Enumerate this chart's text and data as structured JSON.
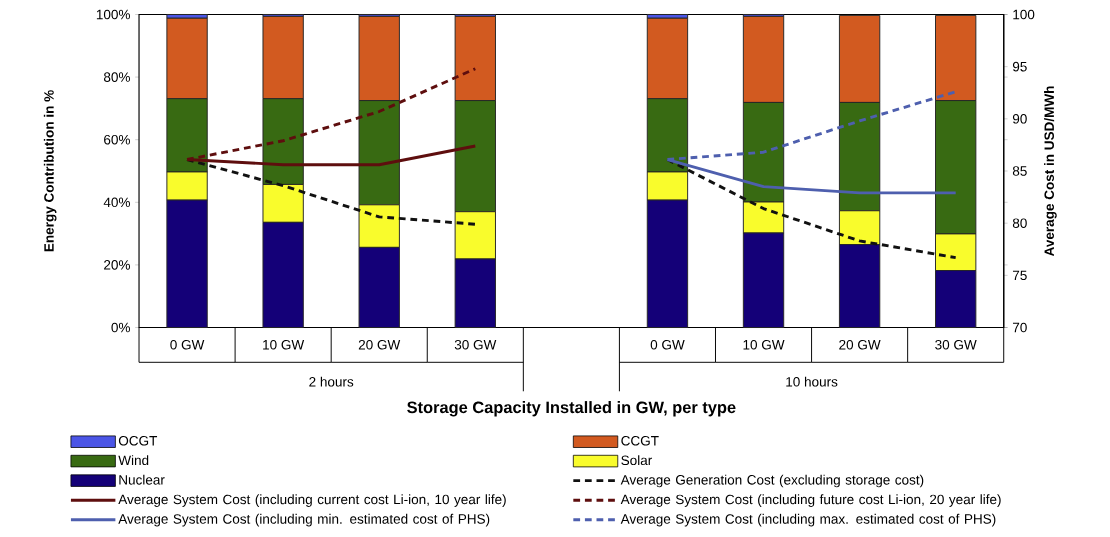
{
  "chart_data": {
    "type": "bar",
    "stacked": true,
    "xlabel": "Storage Capacity Installed in GW, per type",
    "ylabel": "Energy Contribution in %",
    "y2label": "Average Cost in USD/MWh",
    "categories": [
      "0 GW",
      "10 GW",
      "20 GW",
      "30 GW",
      null,
      "0 GW",
      "10 GW",
      "20 GW",
      "30 GW"
    ],
    "annotations": [
      "2 hours",
      "10 hours"
    ],
    "series": [
      {
        "name": "Nuclear",
        "color": "#140078",
        "values": [
          40.7,
          33.6,
          25.6,
          21.9,
          null,
          40.7,
          30.2,
          26.5,
          18.2
        ]
      },
      {
        "name": "Solar",
        "color": "#f9fc2c",
        "values": [
          9.0,
          12.1,
          13.6,
          15.1,
          null,
          9.0,
          9.9,
          10.8,
          11.7
        ]
      },
      {
        "name": "Wind",
        "color": "#386a12",
        "values": [
          23.4,
          27.4,
          33.3,
          35.5,
          null,
          23.4,
          31.8,
          34.6,
          42.6
        ]
      },
      {
        "name": "CCGT",
        "color": "#d25a20",
        "values": [
          25.7,
          26.3,
          26.9,
          26.9,
          null,
          25.7,
          27.5,
          27.8,
          27.2
        ]
      },
      {
        "name": "OCGT",
        "color": "#4b55e6",
        "values": [
          1.2,
          0.6,
          0.6,
          0.6,
          null,
          1.2,
          0.6,
          null,
          null
        ]
      },
      {
        "name": "Average Generation Cost (excluding storage cost)",
        "type": "line",
        "axis": "y2",
        "line_style": "dashed",
        "color": "#111111",
        "values": [
          86.1,
          83.6,
          80.6,
          79.9,
          null,
          86.1,
          81.4,
          78.3,
          76.7
        ]
      },
      {
        "name": "Average System Cost (including current cost Li-ion, 10 year life)",
        "type": "line",
        "axis": "y2",
        "line_style": "solid",
        "color": "#5e0e0e",
        "values": [
          86.1,
          85.6,
          85.6,
          87.4,
          null,
          null,
          null,
          null,
          null
        ]
      },
      {
        "name": "Average System Cost (including future cost Li-ion, 20 year life)",
        "type": "line",
        "axis": "y2",
        "line_style": "dashed",
        "color": "#5e0e0e",
        "values": [
          86.1,
          87.9,
          90.7,
          94.8,
          null,
          null,
          null,
          null,
          null
        ]
      },
      {
        "name": "Average System Cost (including min. estimated cost of PHS)",
        "type": "line",
        "axis": "y2",
        "line_style": "solid",
        "color": "#4e5fae",
        "values": [
          null,
          null,
          null,
          null,
          null,
          86.1,
          83.5,
          82.9,
          82.9
        ]
      },
      {
        "name": "Average System Cost (including max. estimated cost of PHS)",
        "type": "line",
        "axis": "y2",
        "line_style": "dashed",
        "color": "#4e5fae",
        "values": [
          null,
          null,
          null,
          null,
          null,
          86.1,
          86.8,
          89.8,
          92.6
        ]
      }
    ],
    "ylim": [
      0,
      100
    ],
    "yticks": [
      {
        "value": 0,
        "label": "0%"
      },
      {
        "value": 20,
        "label": "20%"
      },
      {
        "value": 40,
        "label": "40%"
      },
      {
        "value": 60,
        "label": "60%"
      },
      {
        "value": 80,
        "label": "80%"
      },
      {
        "value": 100,
        "label": "100%"
      }
    ],
    "y2lim": [
      70,
      100
    ],
    "y2ticks": [
      70,
      75,
      80,
      85,
      90,
      95,
      100
    ],
    "legend": "bottom",
    "grid": false,
    "marker": "none"
  }
}
